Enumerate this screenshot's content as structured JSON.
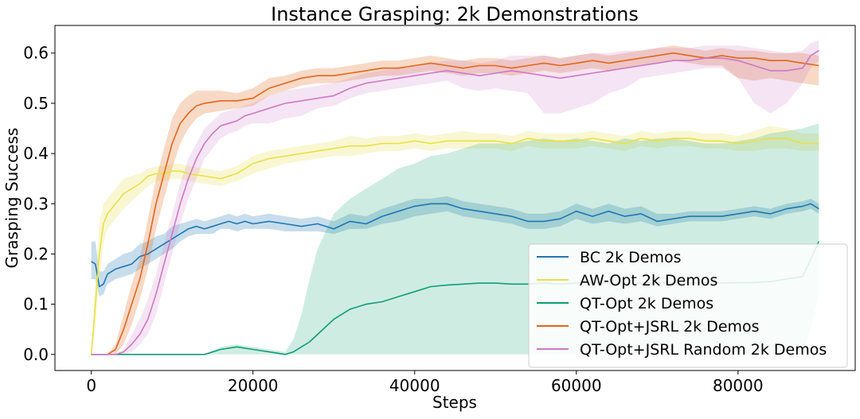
{
  "chart_data": {
    "type": "line",
    "title": "Instance Grasping: 2k Demonstrations",
    "xlabel": "Steps",
    "ylabel": "Grasping Success",
    "xlim": [
      -4500,
      94500
    ],
    "ylim": [
      -0.032,
      0.655
    ],
    "xticks": [
      0,
      20000,
      40000,
      60000,
      80000
    ],
    "yticks": [
      0.0,
      0.1,
      0.2,
      0.3,
      0.4,
      0.5,
      0.6
    ],
    "xtick_labels": [
      "0",
      "20000",
      "40000",
      "60000",
      "80000"
    ],
    "ytick_labels": [
      "0.0",
      "0.1",
      "0.2",
      "0.3",
      "0.4",
      "0.5",
      "0.6"
    ],
    "grid": false,
    "legend_position": "lower-right",
    "series": [
      {
        "name": "BC 2k Demos",
        "color": "#1f77b4",
        "band_opacity": 0.25,
        "x": [
          0,
          500,
          1000,
          1500,
          2000,
          3000,
          4000,
          5000,
          6000,
          7000,
          8000,
          9000,
          10000,
          11000,
          12000,
          13000,
          14000,
          15000,
          16000,
          17000,
          18000,
          19000,
          20000,
          22000,
          24000,
          26000,
          28000,
          30000,
          32000,
          34000,
          36000,
          38000,
          40000,
          42000,
          44000,
          46000,
          48000,
          50000,
          52000,
          54000,
          56000,
          58000,
          60000,
          62000,
          64000,
          66000,
          68000,
          70000,
          72000,
          74000,
          76000,
          78000,
          80000,
          82000,
          84000,
          86000,
          88000,
          89000,
          90000
        ],
        "y": [
          0.185,
          0.18,
          0.135,
          0.14,
          0.16,
          0.17,
          0.175,
          0.18,
          0.195,
          0.2,
          0.21,
          0.22,
          0.23,
          0.24,
          0.25,
          0.255,
          0.25,
          0.255,
          0.26,
          0.265,
          0.26,
          0.265,
          0.26,
          0.265,
          0.26,
          0.255,
          0.26,
          0.25,
          0.265,
          0.26,
          0.275,
          0.285,
          0.295,
          0.3,
          0.3,
          0.29,
          0.285,
          0.28,
          0.275,
          0.265,
          0.265,
          0.27,
          0.285,
          0.275,
          0.285,
          0.275,
          0.28,
          0.265,
          0.27,
          0.275,
          0.275,
          0.275,
          0.28,
          0.285,
          0.28,
          0.29,
          0.295,
          0.3,
          0.29
        ],
        "lower": [
          0.15,
          0.15,
          0.115,
          0.12,
          0.14,
          0.15,
          0.155,
          0.16,
          0.17,
          0.18,
          0.19,
          0.2,
          0.21,
          0.225,
          0.235,
          0.24,
          0.24,
          0.24,
          0.25,
          0.25,
          0.245,
          0.25,
          0.25,
          0.25,
          0.245,
          0.245,
          0.245,
          0.24,
          0.25,
          0.25,
          0.26,
          0.265,
          0.275,
          0.28,
          0.285,
          0.275,
          0.27,
          0.265,
          0.26,
          0.25,
          0.25,
          0.255,
          0.27,
          0.26,
          0.265,
          0.26,
          0.265,
          0.255,
          0.26,
          0.265,
          0.265,
          0.265,
          0.27,
          0.275,
          0.27,
          0.28,
          0.285,
          0.29,
          0.28
        ],
        "upper": [
          0.225,
          0.225,
          0.165,
          0.165,
          0.18,
          0.19,
          0.2,
          0.205,
          0.22,
          0.225,
          0.235,
          0.24,
          0.255,
          0.26,
          0.265,
          0.27,
          0.265,
          0.27,
          0.275,
          0.28,
          0.275,
          0.28,
          0.275,
          0.28,
          0.275,
          0.27,
          0.275,
          0.265,
          0.28,
          0.275,
          0.29,
          0.3,
          0.31,
          0.31,
          0.315,
          0.305,
          0.3,
          0.295,
          0.29,
          0.28,
          0.28,
          0.285,
          0.3,
          0.29,
          0.3,
          0.29,
          0.295,
          0.28,
          0.28,
          0.285,
          0.285,
          0.285,
          0.29,
          0.295,
          0.29,
          0.3,
          0.305,
          0.31,
          0.3
        ]
      },
      {
        "name": "AW-Opt 2k Demos",
        "color": "#e8e04a",
        "band_opacity": 0.25,
        "x": [
          0,
          500,
          1000,
          1500,
          2000,
          3000,
          4000,
          5000,
          6000,
          7000,
          8000,
          9000,
          10000,
          11000,
          12000,
          14000,
          16000,
          18000,
          20000,
          22000,
          24000,
          26000,
          28000,
          30000,
          32000,
          34000,
          36000,
          38000,
          40000,
          42000,
          44000,
          46000,
          48000,
          50000,
          52000,
          54000,
          56000,
          58000,
          60000,
          62000,
          64000,
          66000,
          68000,
          70000,
          72000,
          74000,
          76000,
          78000,
          80000,
          82000,
          84000,
          86000,
          88000,
          90000
        ],
        "y": [
          0.0,
          0.1,
          0.2,
          0.26,
          0.28,
          0.3,
          0.32,
          0.33,
          0.34,
          0.355,
          0.36,
          0.36,
          0.365,
          0.365,
          0.36,
          0.355,
          0.35,
          0.36,
          0.38,
          0.39,
          0.395,
          0.4,
          0.405,
          0.41,
          0.415,
          0.415,
          0.42,
          0.42,
          0.425,
          0.42,
          0.425,
          0.425,
          0.425,
          0.425,
          0.42,
          0.43,
          0.425,
          0.425,
          0.425,
          0.43,
          0.425,
          0.42,
          0.43,
          0.425,
          0.43,
          0.43,
          0.425,
          0.425,
          0.42,
          0.425,
          0.43,
          0.43,
          0.42,
          0.42
        ],
        "lower": [
          0.0,
          0.05,
          0.15,
          0.22,
          0.25,
          0.27,
          0.29,
          0.305,
          0.32,
          0.335,
          0.345,
          0.345,
          0.35,
          0.35,
          0.345,
          0.34,
          0.335,
          0.345,
          0.36,
          0.37,
          0.38,
          0.385,
          0.39,
          0.395,
          0.395,
          0.4,
          0.405,
          0.405,
          0.41,
          0.405,
          0.41,
          0.41,
          0.41,
          0.41,
          0.405,
          0.415,
          0.41,
          0.41,
          0.41,
          0.415,
          0.41,
          0.405,
          0.415,
          0.41,
          0.415,
          0.415,
          0.41,
          0.41,
          0.405,
          0.405,
          0.41,
          0.41,
          0.405,
          0.405
        ],
        "upper": [
          0.0,
          0.15,
          0.26,
          0.3,
          0.31,
          0.33,
          0.35,
          0.355,
          0.36,
          0.37,
          0.375,
          0.375,
          0.38,
          0.38,
          0.375,
          0.37,
          0.365,
          0.375,
          0.395,
          0.405,
          0.41,
          0.415,
          0.42,
          0.425,
          0.435,
          0.43,
          0.435,
          0.435,
          0.44,
          0.435,
          0.44,
          0.445,
          0.44,
          0.44,
          0.435,
          0.445,
          0.44,
          0.44,
          0.44,
          0.445,
          0.44,
          0.435,
          0.445,
          0.44,
          0.445,
          0.445,
          0.44,
          0.44,
          0.435,
          0.445,
          0.455,
          0.45,
          0.44,
          0.44
        ]
      },
      {
        "name": "QT-Opt 2k Demos",
        "color": "#0f9e73",
        "band_opacity": 0.2,
        "x": [
          0,
          5000,
          10000,
          14000,
          16000,
          18000,
          20000,
          22000,
          24000,
          25000,
          26000,
          27000,
          28000,
          30000,
          32000,
          34000,
          36000,
          38000,
          40000,
          42000,
          44000,
          46000,
          48000,
          50000,
          52000,
          54000,
          56000,
          58000,
          60000,
          62000,
          64000,
          66000,
          68000,
          70000,
          72000,
          74000,
          76000,
          78000,
          80000,
          82000,
          84000,
          86000,
          88000,
          89000,
          90000
        ],
        "y": [
          0.0,
          0.0,
          0.0,
          0.0,
          0.01,
          0.015,
          0.01,
          0.005,
          0.0,
          0.005,
          0.015,
          0.025,
          0.04,
          0.07,
          0.09,
          0.1,
          0.105,
          0.115,
          0.125,
          0.135,
          0.138,
          0.14,
          0.142,
          0.142,
          0.14,
          0.14,
          0.142,
          0.14,
          0.142,
          0.143,
          0.142,
          0.14,
          0.142,
          0.142,
          0.143,
          0.142,
          0.143,
          0.142,
          0.143,
          0.143,
          0.145,
          0.15,
          0.155,
          0.19,
          0.225
        ],
        "lower": [
          0.0,
          0.0,
          0.0,
          0.0,
          0.0,
          0.0,
          0.0,
          0.0,
          0.0,
          0.0,
          0.0,
          0.0,
          0.0,
          0.0,
          0.0,
          0.0,
          0.0,
          0.0,
          0.0,
          0.0,
          0.0,
          0.0,
          0.0,
          0.0,
          0.0,
          0.0,
          0.0,
          0.0,
          0.0,
          0.0,
          0.0,
          0.0,
          0.0,
          0.0,
          0.0,
          0.0,
          0.0,
          0.0,
          0.0,
          0.0,
          0.0,
          0.0,
          0.0,
          0.05,
          0.12
        ],
        "upper": [
          0.0,
          0.0,
          0.0,
          0.0,
          0.015,
          0.02,
          0.015,
          0.01,
          0.005,
          0.03,
          0.08,
          0.15,
          0.21,
          0.28,
          0.31,
          0.33,
          0.35,
          0.37,
          0.38,
          0.395,
          0.4,
          0.41,
          0.42,
          0.42,
          0.42,
          0.425,
          0.43,
          0.425,
          0.43,
          0.425,
          0.42,
          0.43,
          0.425,
          0.43,
          0.43,
          0.425,
          0.42,
          0.42,
          0.425,
          0.43,
          0.44,
          0.445,
          0.45,
          0.455,
          0.46
        ]
      },
      {
        "name": "QT-Opt+JSRL 2k Demos",
        "color": "#e0671a",
        "band_opacity": 0.25,
        "x": [
          0,
          2000,
          3000,
          4000,
          5000,
          6000,
          7000,
          8000,
          9000,
          10000,
          11000,
          12000,
          13000,
          14000,
          16000,
          18000,
          20000,
          22000,
          24000,
          26000,
          28000,
          30000,
          32000,
          34000,
          36000,
          38000,
          40000,
          42000,
          44000,
          46000,
          48000,
          50000,
          52000,
          54000,
          56000,
          58000,
          60000,
          62000,
          64000,
          66000,
          68000,
          70000,
          72000,
          74000,
          76000,
          78000,
          80000,
          82000,
          84000,
          86000,
          88000,
          90000
        ],
        "y": [
          0.0,
          0.0,
          0.01,
          0.05,
          0.1,
          0.15,
          0.22,
          0.3,
          0.36,
          0.42,
          0.46,
          0.48,
          0.495,
          0.5,
          0.505,
          0.505,
          0.51,
          0.53,
          0.54,
          0.55,
          0.555,
          0.555,
          0.56,
          0.565,
          0.57,
          0.57,
          0.575,
          0.58,
          0.575,
          0.57,
          0.575,
          0.575,
          0.57,
          0.575,
          0.58,
          0.575,
          0.58,
          0.585,
          0.58,
          0.585,
          0.59,
          0.595,
          0.6,
          0.595,
          0.59,
          0.595,
          0.59,
          0.59,
          0.585,
          0.585,
          0.58,
          0.575
        ],
        "lower": [
          0.0,
          0.0,
          0.0,
          0.02,
          0.06,
          0.11,
          0.17,
          0.25,
          0.31,
          0.37,
          0.42,
          0.45,
          0.47,
          0.48,
          0.485,
          0.49,
          0.495,
          0.515,
          0.525,
          0.535,
          0.54,
          0.54,
          0.545,
          0.55,
          0.555,
          0.555,
          0.56,
          0.565,
          0.56,
          0.555,
          0.56,
          0.56,
          0.555,
          0.56,
          0.565,
          0.56,
          0.565,
          0.57,
          0.565,
          0.57,
          0.575,
          0.58,
          0.585,
          0.58,
          0.575,
          0.575,
          0.55,
          0.545,
          0.55,
          0.545,
          0.54,
          0.535
        ],
        "upper": [
          0.0,
          0.0,
          0.02,
          0.08,
          0.14,
          0.19,
          0.27,
          0.35,
          0.41,
          0.47,
          0.5,
          0.515,
          0.525,
          0.525,
          0.525,
          0.52,
          0.53,
          0.55,
          0.555,
          0.565,
          0.57,
          0.57,
          0.575,
          0.58,
          0.585,
          0.585,
          0.59,
          0.595,
          0.59,
          0.585,
          0.59,
          0.59,
          0.585,
          0.59,
          0.595,
          0.59,
          0.595,
          0.6,
          0.595,
          0.6,
          0.605,
          0.61,
          0.615,
          0.61,
          0.605,
          0.61,
          0.605,
          0.605,
          0.6,
          0.6,
          0.6,
          0.595
        ]
      },
      {
        "name": "QT-Opt+JSRL Random 2k Demos",
        "color": "#cc79c4",
        "band_opacity": 0.2,
        "x": [
          0,
          3000,
          4000,
          5000,
          6000,
          7000,
          8000,
          9000,
          10000,
          11000,
          12000,
          13000,
          14000,
          15000,
          16000,
          17000,
          18000,
          19000,
          20000,
          22000,
          24000,
          26000,
          28000,
          30000,
          32000,
          34000,
          36000,
          38000,
          40000,
          42000,
          44000,
          46000,
          48000,
          50000,
          52000,
          54000,
          56000,
          58000,
          60000,
          62000,
          64000,
          66000,
          68000,
          70000,
          72000,
          74000,
          76000,
          78000,
          80000,
          82000,
          84000,
          86000,
          88000,
          89000,
          90000
        ],
        "y": [
          0.0,
          0.0,
          0.005,
          0.02,
          0.04,
          0.07,
          0.12,
          0.18,
          0.24,
          0.3,
          0.35,
          0.39,
          0.42,
          0.44,
          0.455,
          0.46,
          0.465,
          0.475,
          0.48,
          0.49,
          0.5,
          0.505,
          0.51,
          0.515,
          0.53,
          0.54,
          0.545,
          0.55,
          0.555,
          0.56,
          0.565,
          0.56,
          0.555,
          0.56,
          0.565,
          0.56,
          0.555,
          0.55,
          0.555,
          0.56,
          0.565,
          0.57,
          0.575,
          0.58,
          0.585,
          0.585,
          0.59,
          0.59,
          0.585,
          0.575,
          0.565,
          0.565,
          0.57,
          0.595,
          0.605
        ],
        "lower": [
          0.0,
          0.0,
          0.0,
          0.005,
          0.02,
          0.04,
          0.08,
          0.14,
          0.2,
          0.26,
          0.31,
          0.35,
          0.39,
          0.41,
          0.43,
          0.44,
          0.445,
          0.455,
          0.46,
          0.46,
          0.47,
          0.475,
          0.49,
          0.495,
          0.51,
          0.52,
          0.525,
          0.53,
          0.535,
          0.54,
          0.545,
          0.53,
          0.525,
          0.53,
          0.525,
          0.52,
          0.48,
          0.48,
          0.49,
          0.5,
          0.52,
          0.53,
          0.55,
          0.555,
          0.56,
          0.565,
          0.57,
          0.57,
          0.55,
          0.5,
          0.48,
          0.5,
          0.54,
          0.57,
          0.585
        ],
        "upper": [
          0.0,
          0.0,
          0.01,
          0.04,
          0.07,
          0.11,
          0.16,
          0.22,
          0.28,
          0.34,
          0.39,
          0.42,
          0.45,
          0.465,
          0.48,
          0.485,
          0.49,
          0.495,
          0.5,
          0.515,
          0.525,
          0.53,
          0.535,
          0.54,
          0.55,
          0.56,
          0.565,
          0.57,
          0.575,
          0.58,
          0.585,
          0.585,
          0.58,
          0.585,
          0.595,
          0.595,
          0.595,
          0.59,
          0.595,
          0.6,
          0.6,
          0.605,
          0.605,
          0.61,
          0.61,
          0.61,
          0.615,
          0.615,
          0.615,
          0.61,
          0.605,
          0.6,
          0.605,
          0.62,
          0.625
        ]
      }
    ]
  }
}
